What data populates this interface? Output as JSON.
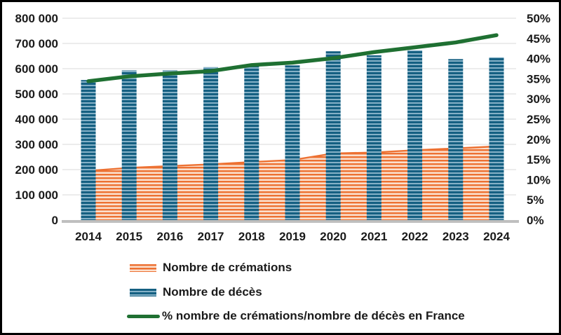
{
  "chart_data": {
    "type": "combo",
    "title": "",
    "categories": [
      "2014",
      "2015",
      "2016",
      "2017",
      "2018",
      "2019",
      "2020",
      "2021",
      "2022",
      "2023",
      "2024"
    ],
    "series": [
      {
        "name": "Nombre de crémations",
        "type": "area",
        "axis": "left",
        "color": "#ED7132",
        "pattern": "horizontal-stripes",
        "values": [
          195000,
          207000,
          214000,
          221000,
          230000,
          238000,
          264000,
          268000,
          277000,
          284000,
          292000
        ]
      },
      {
        "name": "Nombre de décès",
        "type": "bar",
        "axis": "left",
        "color": "#156082",
        "pattern": "horizontal-stripes",
        "values": [
          555000,
          593000,
          593000,
          606000,
          611000,
          613000,
          669000,
          653000,
          673000,
          638000,
          645000
        ]
      },
      {
        "name": "% nombre de crémations/nombre de décès en France",
        "type": "line",
        "axis": "right",
        "color": "#1F7032",
        "values": [
          34.4,
          35.6,
          36.3,
          36.9,
          38.4,
          39.0,
          40.1,
          41.6,
          42.8,
          44.0,
          45.8
        ]
      }
    ],
    "left_axis": {
      "min": 0,
      "max": 800000,
      "step": 100000,
      "tick_labels_top_to_bottom": [
        "800 000",
        "700 000",
        "600 000",
        "500 000",
        "400 000",
        "300 000",
        "200 000",
        "100 000",
        "0"
      ]
    },
    "right_axis": {
      "min": 0,
      "max": 50,
      "step": 5,
      "unit": "%",
      "tick_labels_top_to_bottom": [
        "50%",
        "45%",
        "40%",
        "35%",
        "30%",
        "25%",
        "20%",
        "15%",
        "10%",
        "5%",
        "0%"
      ]
    },
    "gridlines": true,
    "grid_color": "#D9D9D9",
    "axis_line_color": "#BFBFBF",
    "legend_position": "bottom-left"
  }
}
